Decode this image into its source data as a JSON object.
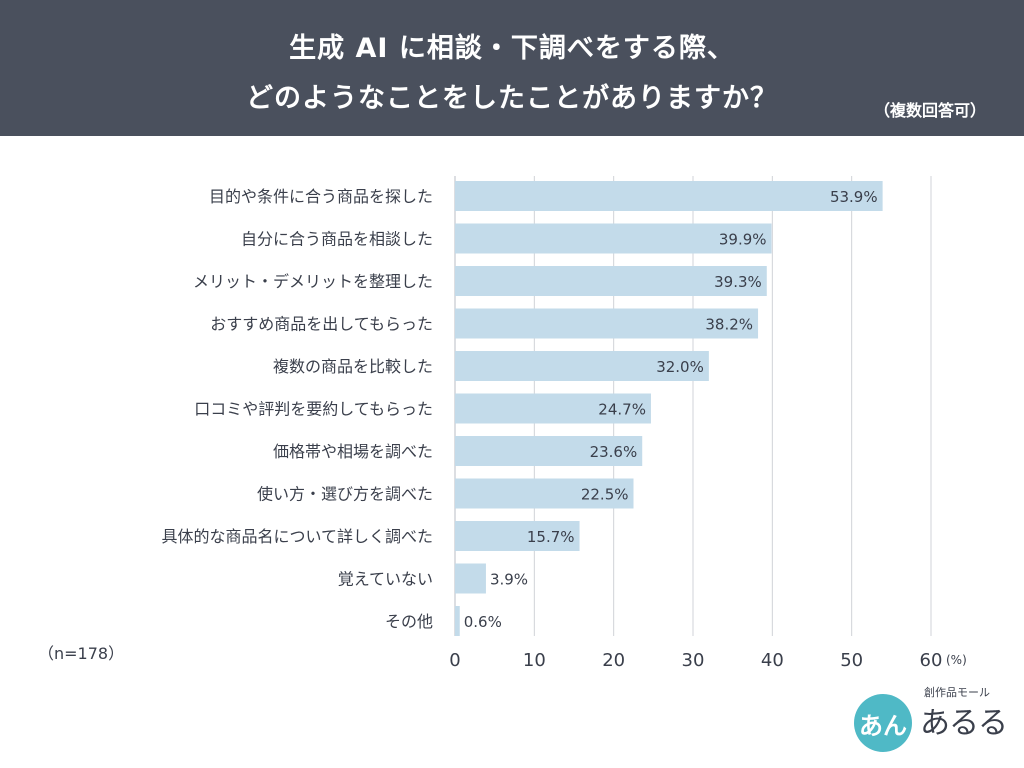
{
  "header": {
    "title_line1": "生成 AI に相談・下調べをする際、",
    "title_line2": "どのようなことをしたことがありますか？",
    "note": "（複数回答可）"
  },
  "sample_size": "（n=178）",
  "logo": {
    "circle_text": "あん",
    "small_text": "創作品モール",
    "main_text": "あるる"
  },
  "colors": {
    "header_bg": "#4a505d",
    "bar": "#c3dbea",
    "grid": "#d0d3d8",
    "text": "#3a3f4b"
  },
  "chart_data": {
    "type": "bar",
    "orientation": "horizontal",
    "categories": [
      "目的や条件に合う商品を探した",
      "自分に合う商品を相談した",
      "メリット・デメリットを整理した",
      "おすすめ商品を出してもらった",
      "複数の商品を比較した",
      "口コミや評判を要約してもらった",
      "価格帯や相場を調べた",
      "使い方・選び方を調べた",
      "具体的な商品名について詳しく調べた",
      "覚えていない",
      "その他"
    ],
    "values": [
      53.9,
      39.9,
      39.3,
      38.2,
      32.0,
      24.7,
      23.6,
      22.5,
      15.7,
      3.9,
      0.6
    ],
    "value_labels": [
      "53.9%",
      "39.9%",
      "39.3%",
      "38.2%",
      "32.0%",
      "24.7%",
      "23.6%",
      "22.5%",
      "15.7%",
      "3.9%",
      "0.6%"
    ],
    "xlim": [
      0,
      60
    ],
    "xticks": [
      0,
      10,
      20,
      30,
      40,
      50,
      60
    ],
    "xtick_labels": [
      "0",
      "10",
      "20",
      "30",
      "40",
      "50",
      "60"
    ],
    "unit_label": "(%)",
    "grid": true
  }
}
